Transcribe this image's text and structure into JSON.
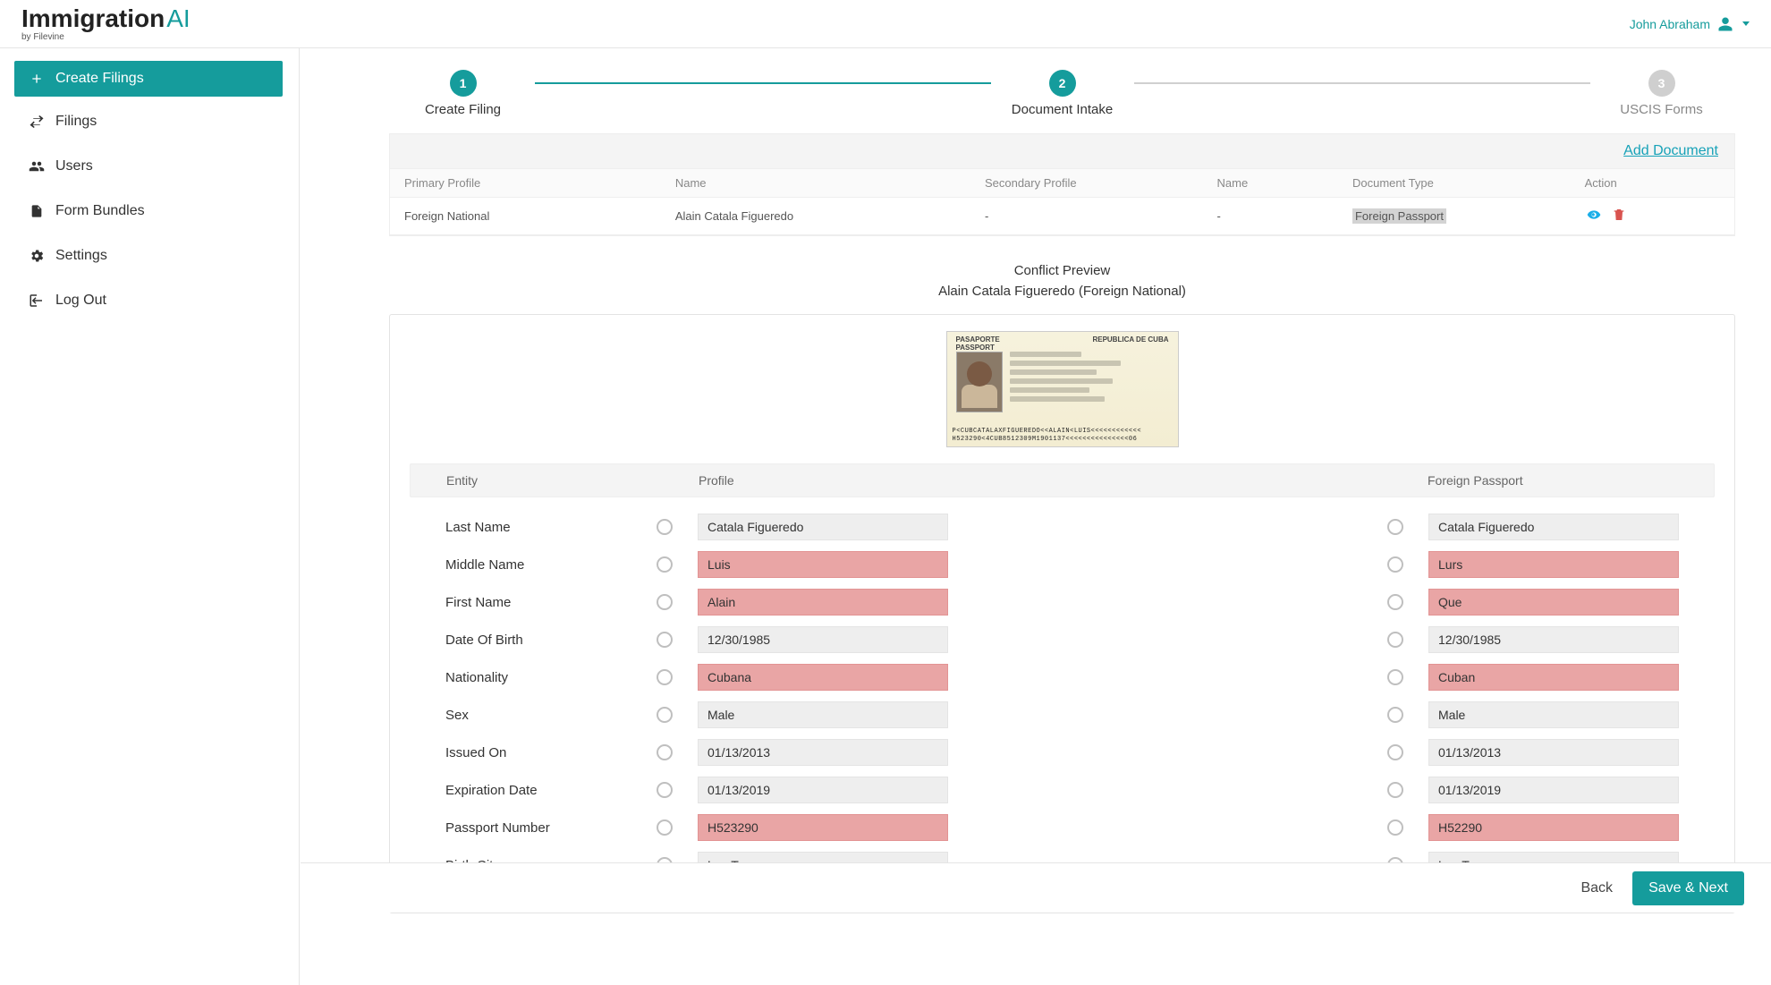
{
  "brand": {
    "name": "Immigration",
    "suffix": "AI",
    "tagline": "by Filevine"
  },
  "user": {
    "name": "John Abraham"
  },
  "sidebar": {
    "create": "Create Filings",
    "items": [
      {
        "label": "Filings"
      },
      {
        "label": "Users"
      },
      {
        "label": "Form Bundles"
      },
      {
        "label": "Settings"
      },
      {
        "label": "Log Out"
      }
    ]
  },
  "stepper": {
    "steps": [
      {
        "num": "1",
        "label": "Create Filing",
        "active": true
      },
      {
        "num": "2",
        "label": "Document Intake",
        "active": true
      },
      {
        "num": "3",
        "label": "USCIS Forms",
        "active": false
      }
    ]
  },
  "docbar": {
    "add": "Add Document"
  },
  "doctable": {
    "headers": {
      "primary": "Primary Profile",
      "name1": "Name",
      "secondary": "Secondary Profile",
      "name2": "Name",
      "doctype": "Document Type",
      "action": "Action"
    },
    "row": {
      "primary": "Foreign National",
      "name1": "Alain Catala Figueredo",
      "secondary": "-",
      "name2": "-",
      "doctype": "Foreign Passport"
    }
  },
  "conflict": {
    "title": "Conflict Preview",
    "subtitle": "Alain Catala Figueredo (Foreign National)",
    "passport": {
      "hdr_left": "PASAPORTE\nPASSPORT",
      "hdr_right": "REPUBLICA DE CUBA",
      "mrz1": "P<CUBCATALAXFIGUEREDO<<ALAIN<LUIS<<<<<<<<<<<<",
      "mrz2": "H523290<4CUB8512309M1901137<<<<<<<<<<<<<<<06"
    },
    "headers": {
      "entity": "Entity",
      "profile": "Profile",
      "passport": "Foreign Passport"
    },
    "rows": [
      {
        "label": "Last Name",
        "profile": "Catala Figueredo",
        "passport": "Catala Figueredo",
        "conflict": false
      },
      {
        "label": "Middle Name",
        "profile": "Luis",
        "passport": "Lurs",
        "conflict": true
      },
      {
        "label": "First Name",
        "profile": "Alain",
        "passport": "Que",
        "conflict": true
      },
      {
        "label": "Date Of Birth",
        "profile": "12/30/1985",
        "passport": "12/30/1985",
        "conflict": false
      },
      {
        "label": "Nationality",
        "profile": "Cubana",
        "passport": "Cuban",
        "conflict": true
      },
      {
        "label": "Sex",
        "profile": "Male",
        "passport": "Male",
        "conflict": false
      },
      {
        "label": "Issued On",
        "profile": "01/13/2013",
        "passport": "01/13/2013",
        "conflict": false
      },
      {
        "label": "Expiration Date",
        "profile": "01/13/2019",
        "passport": "01/13/2019",
        "conflict": false
      },
      {
        "label": "Passport Number",
        "profile": "H523290",
        "passport": "H52290",
        "conflict": true
      },
      {
        "label": "Birth City",
        "profile": "Las Tunas",
        "passport": "Las Tunas",
        "conflict": false
      }
    ]
  },
  "footer": {
    "back": "Back",
    "save": "Save & Next"
  }
}
